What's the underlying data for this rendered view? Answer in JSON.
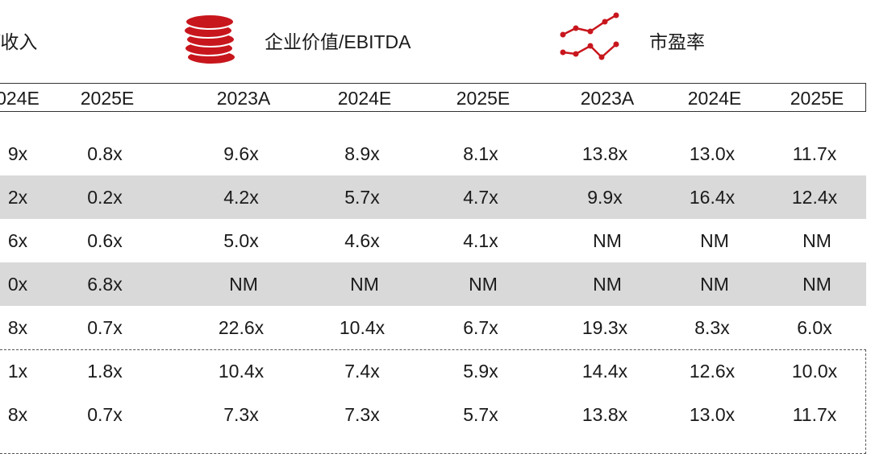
{
  "headers": {
    "revenue_partial": "/收入",
    "ev_ebitda": "企业价值/EBITDA",
    "pe": "市盈率",
    "coins_icon": "stacked-coins-icon",
    "trend_icon": "line-chart-icon"
  },
  "years": [
    "024E",
    "2025E",
    "2023A",
    "2024E",
    "2025E",
    "2023A",
    "2024E",
    "2025E"
  ],
  "rows": [
    [
      "9x",
      "0.8x",
      "9.6x",
      "8.9x",
      "8.1x",
      "13.8x",
      "13.0x",
      "11.7x"
    ],
    [
      "2x",
      "0.2x",
      "4.2x",
      "5.7x",
      "4.7x",
      "9.9x",
      "16.4x",
      "12.4x"
    ],
    [
      "6x",
      "0.6x",
      "5.0x",
      "4.6x",
      "4.1x",
      "NM",
      "NM",
      "NM"
    ],
    [
      "0x",
      "6.8x",
      "NM",
      "NM",
      "NM",
      "NM",
      "NM",
      "NM"
    ],
    [
      "8x",
      "0.7x",
      "22.6x",
      "10.4x",
      "6.7x",
      "19.3x",
      "8.3x",
      "6.0x"
    ],
    [
      "1x",
      "1.8x",
      "10.4x",
      "7.4x",
      "5.9x",
      "14.4x",
      "12.6x",
      "10.0x"
    ],
    [
      "8x",
      "0.7x",
      "7.3x",
      "7.3x",
      "5.7x",
      "13.8x",
      "13.0x",
      "11.7x"
    ]
  ],
  "colors": {
    "accent_red": "#c8161d",
    "band_gray": "#d9d9d9"
  }
}
